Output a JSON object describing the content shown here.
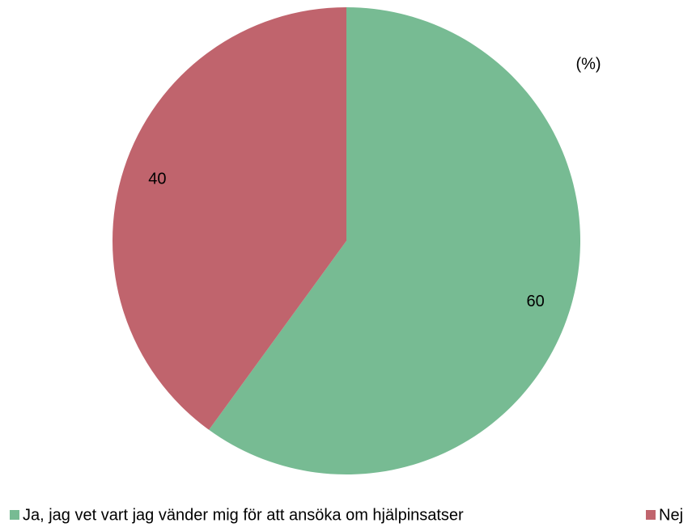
{
  "chart_data": {
    "type": "pie",
    "annotation": "(%)",
    "categories": [
      "Ja, jag vet vart jag vänder mig för att ansöka om hjälpinsatser",
      "Nej"
    ],
    "values": [
      60,
      40
    ],
    "colors": [
      "#77bb93",
      "#c0646d"
    ]
  }
}
